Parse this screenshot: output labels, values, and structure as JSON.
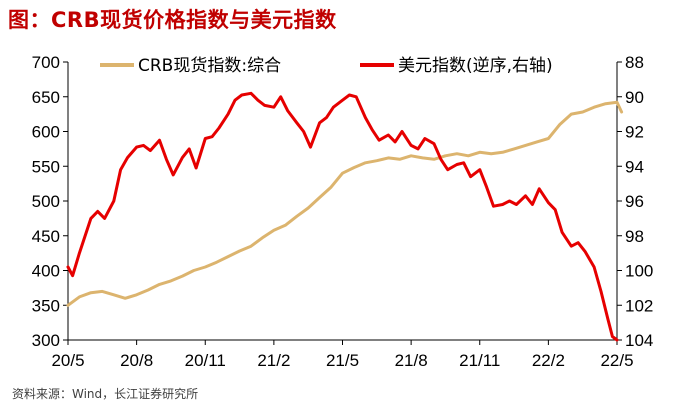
{
  "title": "图：CRB现货价格指数与美元指数",
  "source": "资料来源：Wind，长江证券研究所",
  "chart_data": {
    "type": "line",
    "title": "图：CRB现货价格指数与美元指数",
    "x_ticks": [
      "20/5",
      "20/8",
      "20/11",
      "21/2",
      "21/5",
      "21/8",
      "21/11",
      "22/2",
      "22/5"
    ],
    "left_axis": {
      "ylim": [
        300,
        700
      ],
      "ticks": [
        300,
        350,
        400,
        450,
        500,
        550,
        600,
        650,
        700
      ]
    },
    "right_axis": {
      "ylim": [
        88,
        104
      ],
      "inverted": true,
      "ticks": [
        88,
        90,
        92,
        94,
        96,
        98,
        100,
        102,
        104
      ]
    },
    "legend_position": "top",
    "grid": false,
    "series": [
      {
        "name": "CRB现货指数:综合",
        "axis": "left",
        "color": "#dcb46e",
        "points": [
          [
            "20/5",
            350
          ],
          [
            "20/5.5",
            362
          ],
          [
            "20/6",
            368
          ],
          [
            "20/6.5",
            370
          ],
          [
            "20/7",
            365
          ],
          [
            "20/7.5",
            360
          ],
          [
            "20/8",
            365
          ],
          [
            "20/8.5",
            372
          ],
          [
            "20/9",
            380
          ],
          [
            "20/9.5",
            385
          ],
          [
            "20/10",
            392
          ],
          [
            "20/10.5",
            400
          ],
          [
            "20/11",
            405
          ],
          [
            "20/11.5",
            412
          ],
          [
            "20/12",
            420
          ],
          [
            "20/12.5",
            428
          ],
          [
            "21/1",
            435
          ],
          [
            "21/1.5",
            447
          ],
          [
            "21/2",
            458
          ],
          [
            "21/2.5",
            465
          ],
          [
            "21/3",
            478
          ],
          [
            "21/3.5",
            490
          ],
          [
            "21/4",
            505
          ],
          [
            "21/4.5",
            520
          ],
          [
            "21/5",
            540
          ],
          [
            "21/5.5",
            548
          ],
          [
            "21/6",
            555
          ],
          [
            "21/6.5",
            558
          ],
          [
            "21/7",
            562
          ],
          [
            "21/7.5",
            560
          ],
          [
            "21/8",
            565
          ],
          [
            "21/8.5",
            562
          ],
          [
            "21/9",
            560
          ],
          [
            "21/9.5",
            565
          ],
          [
            "21/10",
            568
          ],
          [
            "21/10.5",
            565
          ],
          [
            "21/11",
            570
          ],
          [
            "21/11.5",
            568
          ],
          [
            "21/12",
            570
          ],
          [
            "21/12.5",
            575
          ],
          [
            "22/1",
            580
          ],
          [
            "22/1.5",
            585
          ],
          [
            "22/2",
            590
          ],
          [
            "22/2.5",
            610
          ],
          [
            "22/3",
            625
          ],
          [
            "22/3.5",
            628
          ],
          [
            "22/4",
            635
          ],
          [
            "22/4.5",
            640
          ],
          [
            "22/5",
            642
          ],
          [
            "22/5.2",
            628
          ]
        ]
      },
      {
        "name": "美元指数(逆序,右轴)",
        "axis": "right",
        "color": "#e60000",
        "points": [
          [
            "20/5",
            99.8
          ],
          [
            "20/5.2",
            100.3
          ],
          [
            "20/5.5",
            99.0
          ],
          [
            "20/6",
            97.0
          ],
          [
            "20/6.3",
            96.6
          ],
          [
            "20/6.6",
            97.0
          ],
          [
            "20/7",
            96.0
          ],
          [
            "20/7.3",
            94.2
          ],
          [
            "20/7.6",
            93.5
          ],
          [
            "20/8",
            92.9
          ],
          [
            "20/8.3",
            92.8
          ],
          [
            "20/8.6",
            93.1
          ],
          [
            "20/9",
            92.5
          ],
          [
            "20/9.3",
            93.6
          ],
          [
            "20/9.6",
            94.5
          ],
          [
            "20/10",
            93.5
          ],
          [
            "20/10.3",
            93.0
          ],
          [
            "20/10.6",
            94.1
          ],
          [
            "20/11",
            92.4
          ],
          [
            "20/11.3",
            92.3
          ],
          [
            "20/11.6",
            91.8
          ],
          [
            "20/12",
            91.0
          ],
          [
            "20/12.3",
            90.2
          ],
          [
            "20/12.6",
            89.9
          ],
          [
            "21/1",
            89.8
          ],
          [
            "21/1.3",
            90.2
          ],
          [
            "21/1.6",
            90.5
          ],
          [
            "21/2",
            90.6
          ],
          [
            "21/2.3",
            90.0
          ],
          [
            "21/2.6",
            90.8
          ],
          [
            "21/3",
            91.5
          ],
          [
            "21/3.3",
            92.0
          ],
          [
            "21/3.6",
            92.9
          ],
          [
            "21/4",
            91.5
          ],
          [
            "21/4.3",
            91.2
          ],
          [
            "21/4.6",
            90.6
          ],
          [
            "21/5",
            90.2
          ],
          [
            "21/5.3",
            89.9
          ],
          [
            "21/5.6",
            90.0
          ],
          [
            "21/6",
            91.2
          ],
          [
            "21/6.3",
            91.9
          ],
          [
            "21/6.6",
            92.5
          ],
          [
            "21/7",
            92.2
          ],
          [
            "21/7.3",
            92.6
          ],
          [
            "21/7.6",
            92.0
          ],
          [
            "21/8",
            92.8
          ],
          [
            "21/8.3",
            93.0
          ],
          [
            "21/8.6",
            92.4
          ],
          [
            "21/9",
            92.7
          ],
          [
            "21/9.3",
            93.6
          ],
          [
            "21/9.6",
            94.2
          ],
          [
            "21/10",
            93.9
          ],
          [
            "21/10.3",
            93.8
          ],
          [
            "21/10.6",
            94.6
          ],
          [
            "21/11",
            94.2
          ],
          [
            "21/11.3",
            95.2
          ],
          [
            "21/11.6",
            96.3
          ],
          [
            "21/12",
            96.2
          ],
          [
            "21/12.3",
            96.0
          ],
          [
            "21/12.6",
            96.2
          ],
          [
            "22/1",
            95.7
          ],
          [
            "22/1.3",
            96.2
          ],
          [
            "22/1.6",
            95.3
          ],
          [
            "22/2",
            96.1
          ],
          [
            "22/2.3",
            96.5
          ],
          [
            "22/2.6",
            97.8
          ],
          [
            "22/3",
            98.6
          ],
          [
            "22/3.3",
            98.4
          ],
          [
            "22/3.6",
            98.9
          ],
          [
            "22/4",
            99.8
          ],
          [
            "22/4.3",
            101.2
          ],
          [
            "22/4.6",
            102.8
          ],
          [
            "22/4.8",
            103.8
          ],
          [
            "22/5",
            104.0
          ]
        ]
      }
    ]
  }
}
